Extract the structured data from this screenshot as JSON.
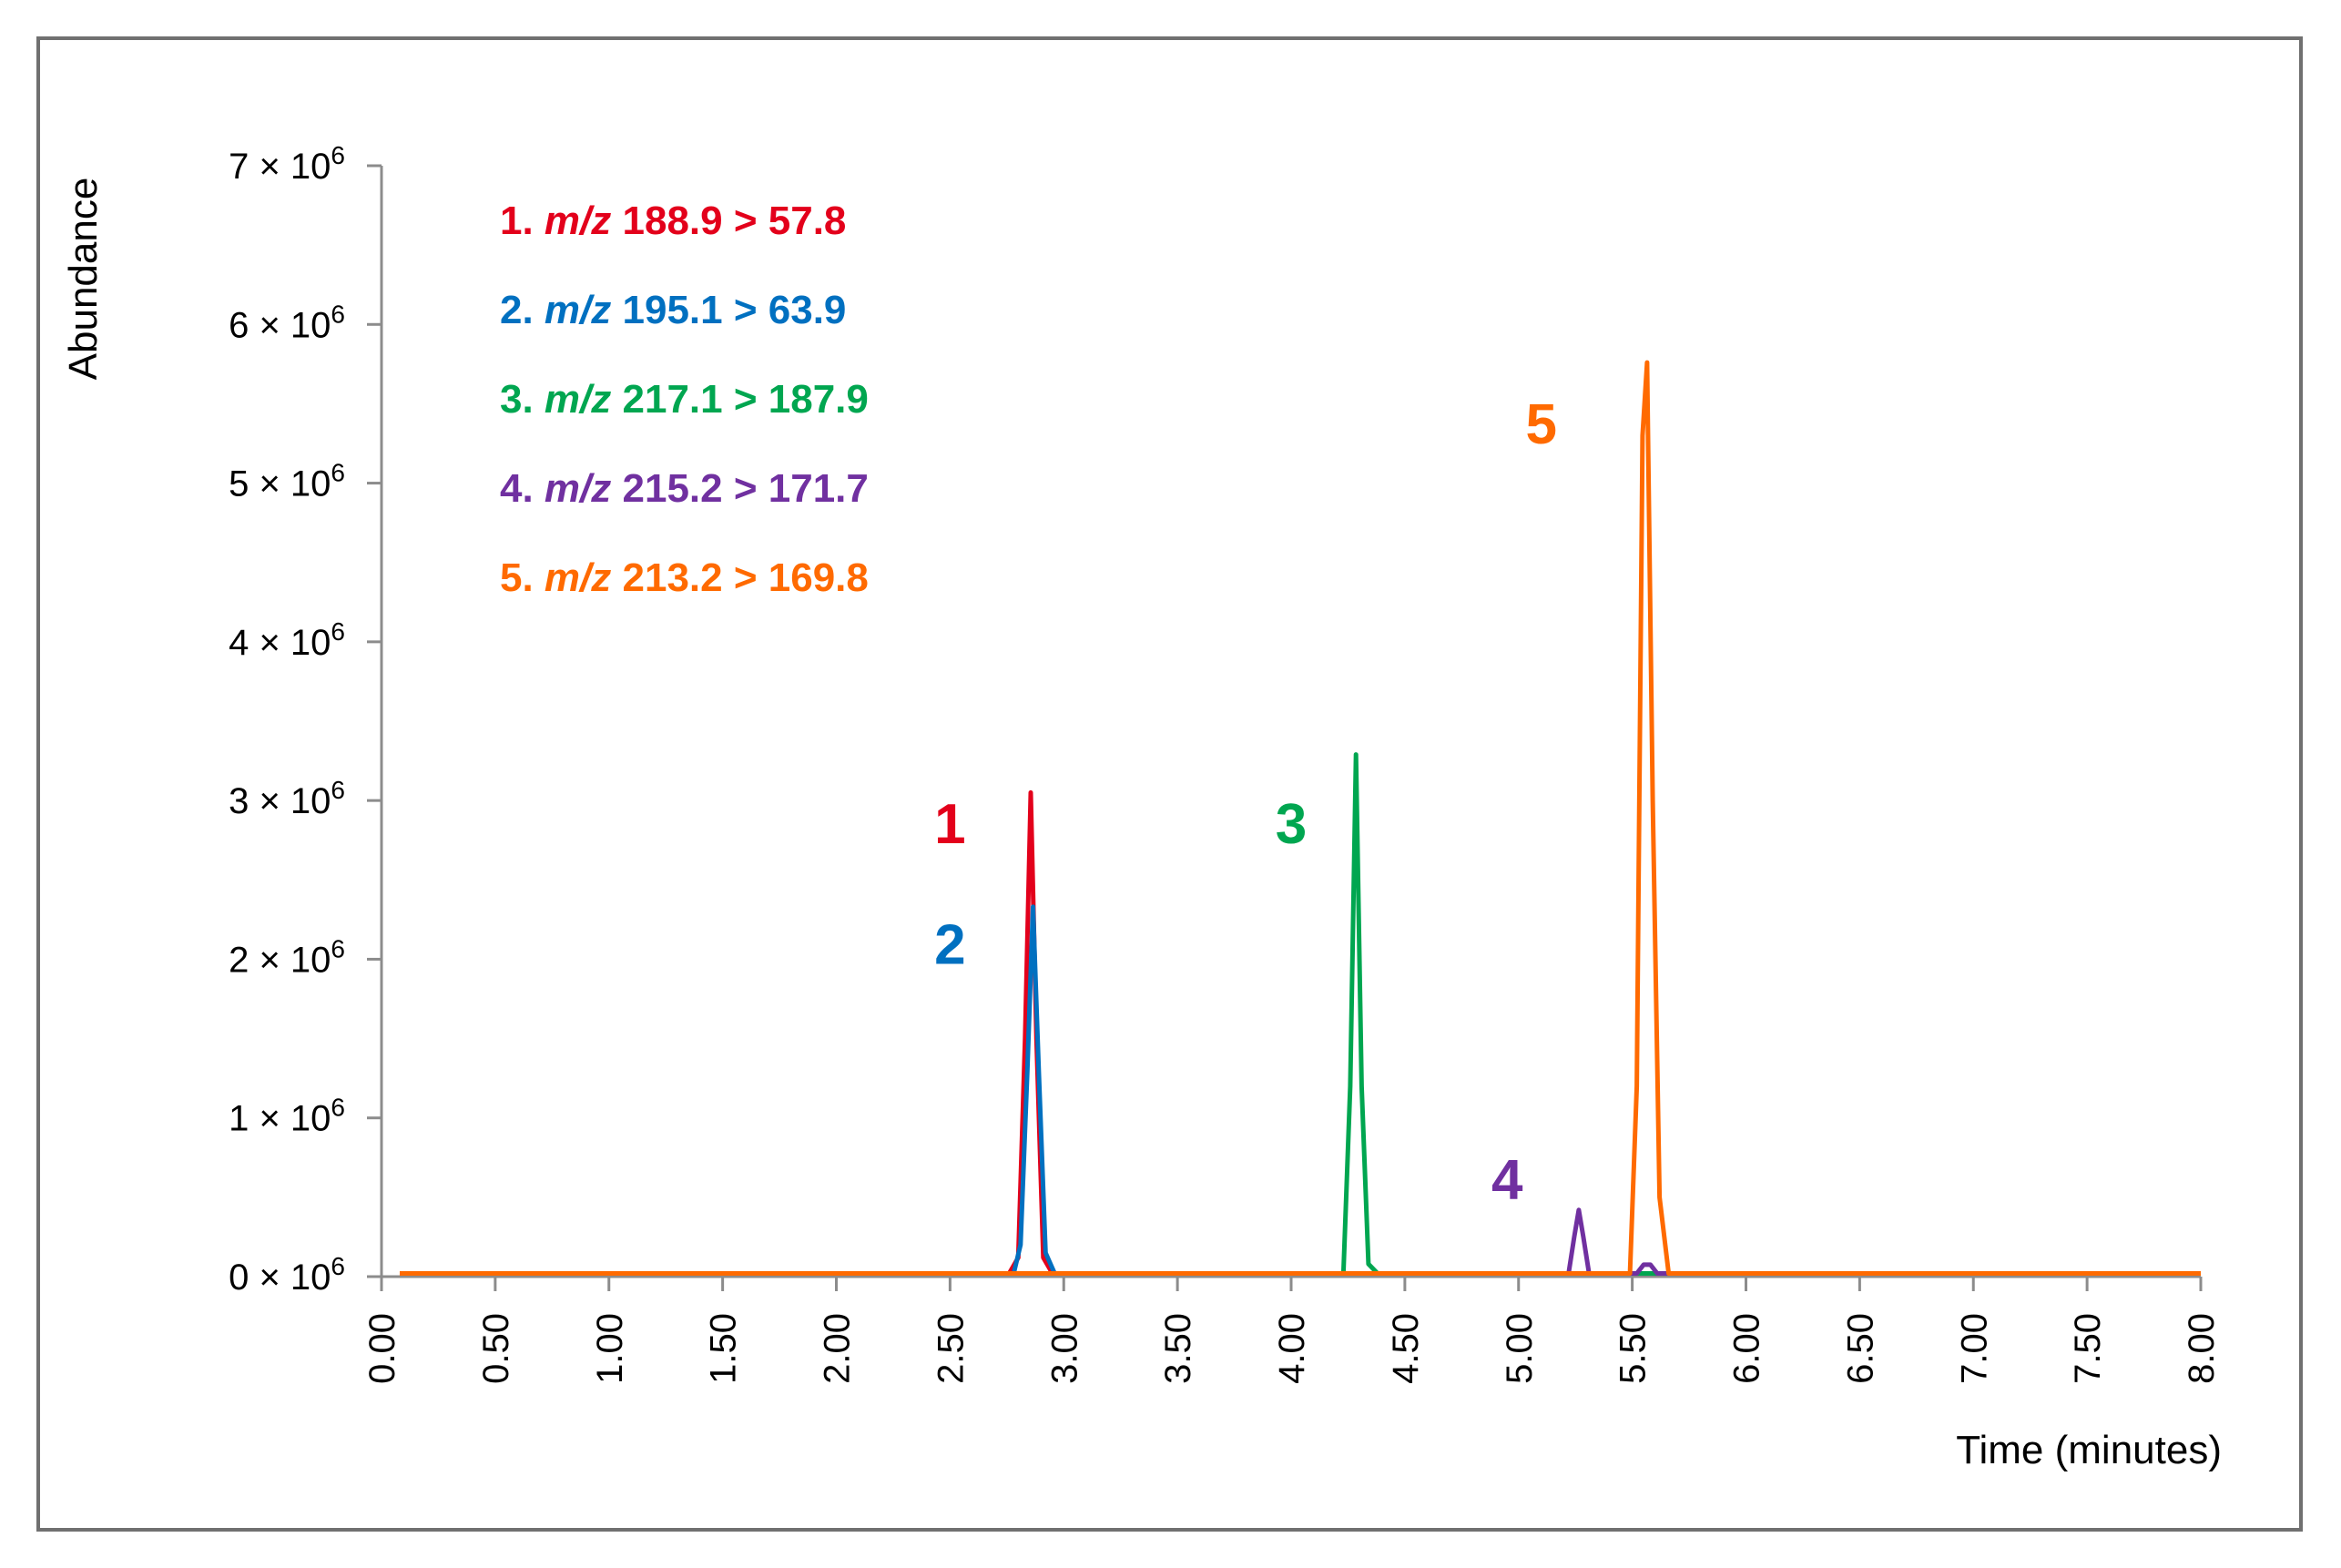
{
  "chart_data": {
    "type": "line",
    "title": "",
    "xlabel": "Time (minutes)",
    "ylabel": "Abundance",
    "xlim": [
      0.0,
      8.0
    ],
    "ylim": [
      0,
      7000000
    ],
    "x_ticks": [
      "0.00",
      "0.50",
      "1.00",
      "1.50",
      "2.00",
      "2.50",
      "3.00",
      "3.50",
      "4.00",
      "4.50",
      "5.00",
      "5.50",
      "6.00",
      "6.50",
      "7.00",
      "7.50",
      "8.00"
    ],
    "y_ticks": [
      {
        "value": 0,
        "mantissa": "0"
      },
      {
        "value": 1000000,
        "mantissa": "1"
      },
      {
        "value": 2000000,
        "mantissa": "2"
      },
      {
        "value": 3000000,
        "mantissa": "3"
      },
      {
        "value": 4000000,
        "mantissa": "4"
      },
      {
        "value": 5000000,
        "mantissa": "5"
      },
      {
        "value": 6000000,
        "mantissa": "6"
      },
      {
        "value": 7000000,
        "mantissa": "7"
      }
    ],
    "y_tick_times": "× 10",
    "y_tick_exponent": "6",
    "grid": false,
    "series": [
      {
        "name": "1. m/z 188.9 > 57.8",
        "color": "#e3001b",
        "x": [
          0.08,
          2.76,
          2.8,
          2.83,
          2.855,
          2.88,
          2.91,
          2.95,
          8.0
        ],
        "y": [
          20000,
          20000,
          120000,
          1500000,
          3050000,
          1500000,
          120000,
          20000,
          20000
        ]
      },
      {
        "name": "2. m/z 195.1 > 63.9",
        "color": "#0070c0",
        "x": [
          0.08,
          2.78,
          2.81,
          2.84,
          2.865,
          2.89,
          2.92,
          2.96,
          8.0
        ],
        "y": [
          20000,
          20000,
          200000,
          1300000,
          2330000,
          1300000,
          150000,
          20000,
          20000
        ]
      },
      {
        "name": "3. m/z 217.1 > 187.9",
        "color": "#00a650",
        "x": [
          0.08,
          4.23,
          4.26,
          4.285,
          4.31,
          4.34,
          4.38,
          8.0
        ],
        "y": [
          20000,
          20000,
          1200000,
          3290000,
          1200000,
          80000,
          20000,
          20000
        ]
      },
      {
        "name": "4. m/z 215.2 > 171.7",
        "color": "#7030a0",
        "x": [
          0.08,
          5.22,
          5.245,
          5.265,
          5.285,
          5.31,
          5.52,
          5.55,
          5.58,
          5.61,
          8.0
        ],
        "y": [
          20000,
          20000,
          250000,
          420000,
          250000,
          20000,
          20000,
          75000,
          75000,
          20000,
          20000
        ]
      },
      {
        "name": "5. m/z 213.2 > 169.8",
        "color": "#ff6a00",
        "x": [
          0.08,
          5.49,
          5.52,
          5.545,
          5.565,
          5.59,
          5.62,
          5.66,
          8.0
        ],
        "y": [
          20000,
          20000,
          1200000,
          5300000,
          5760000,
          3000000,
          500000,
          20000,
          20000
        ]
      }
    ],
    "legend": {
      "placement": "top-left",
      "items": [
        {
          "prefix": "1. ",
          "italic": "m/z",
          "suffix": " 188.9 > 57.8",
          "color": "#e3001b"
        },
        {
          "prefix": "2. ",
          "italic": "m/z",
          "suffix": " 195.1 > 63.9",
          "color": "#0070c0"
        },
        {
          "prefix": "3. ",
          "italic": "m/z",
          "suffix": " 217.1 > 187.9",
          "color": "#00a650"
        },
        {
          "prefix": "4. ",
          "italic": "m/z",
          "suffix": " 215.2 > 171.7",
          "color": "#7030a0"
        },
        {
          "prefix": "5. ",
          "italic": "m/z",
          "suffix": " 213.2 > 169.8",
          "color": "#ff6a00"
        }
      ]
    },
    "annotations": [
      {
        "text": "1",
        "color": "#e3001b",
        "x": 2.5,
        "y": 2730000
      },
      {
        "text": "2",
        "color": "#0070c0",
        "x": 2.5,
        "y": 1970000
      },
      {
        "text": "3",
        "color": "#00a650",
        "x": 4.0,
        "y": 2730000
      },
      {
        "text": "4",
        "color": "#7030a0",
        "x": 4.95,
        "y": 490000
      },
      {
        "text": "5",
        "color": "#ff6a00",
        "x": 5.1,
        "y": 5250000
      }
    ]
  }
}
